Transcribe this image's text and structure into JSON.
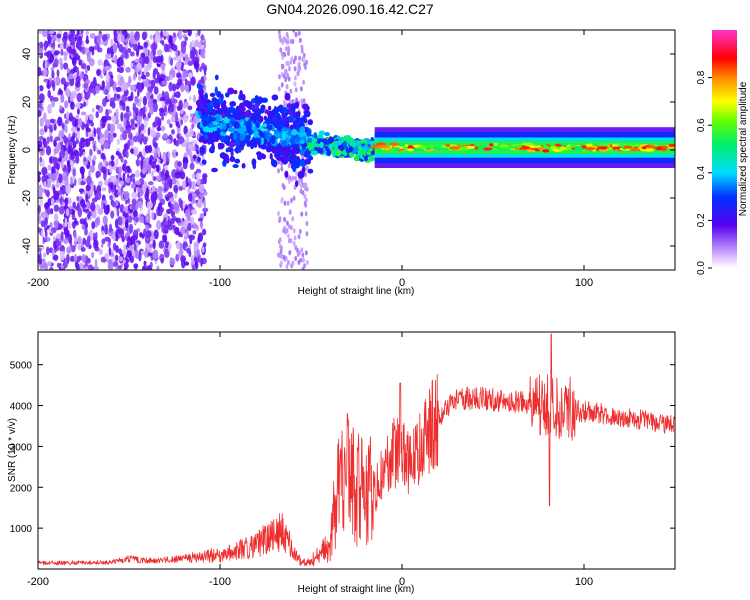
{
  "title": "GN04.2026.090.16.42.C27",
  "colors": {
    "signal": "#ee2e2e",
    "frame": "#000000",
    "background": "#ffffff"
  },
  "chart_data": [
    {
      "type": "heatmap",
      "name": "spectrogram",
      "xlabel": "Height of straight line (km)",
      "ylabel": "Frequency (Hz)",
      "xlim": [
        -200,
        150
      ],
      "ylim": [
        -50,
        50
      ],
      "xticks": [
        -200,
        -100,
        0,
        100
      ],
      "yticks": [
        -40,
        -20,
        0,
        20,
        40
      ],
      "colorbar": {
        "label": "Normalized spectral amplitude",
        "range": [
          0,
          1
        ],
        "ticks": [
          0.0,
          0.2,
          0.4,
          0.6,
          0.8
        ],
        "colormap": "rainbow (purple-blue-cyan-green-yellow-red-magenta)"
      },
      "regions": [
        {
          "x": [
            -200,
            -110
          ],
          "freq_spread": "full band -50 to 50",
          "amplitude": "0.0-0.2 (noise)"
        },
        {
          "x": [
            -110,
            -50
          ],
          "freq_center": 10,
          "amplitude": "0.1-0.4"
        },
        {
          "x": [
            -50,
            -15
          ],
          "freq_center": 0,
          "amplitude": "0.3-0.6"
        },
        {
          "x": [
            -15,
            150
          ],
          "freq_center": 1,
          "amplitude": "0.4-1.0 (peaks red)"
        }
      ]
    },
    {
      "type": "line",
      "name": "snr",
      "xlabel": "Height of straight line (km)",
      "ylabel": "SNR (10 * v/v)",
      "xlim": [
        -200,
        150
      ],
      "ylim": [
        0,
        5800
      ],
      "xticks": [
        -200,
        -100,
        0,
        100
      ],
      "yticks": [
        1000,
        2000,
        3000,
        4000,
        5000
      ],
      "series": [
        {
          "name": "SNR",
          "x": [
            -200,
            -180,
            -160,
            -150,
            -140,
            -120,
            -100,
            -90,
            -80,
            -70,
            -65,
            -60,
            -55,
            -50,
            -45,
            -40,
            -35,
            -30,
            -25,
            -20,
            -15,
            -10,
            -5,
            0,
            5,
            10,
            20,
            30,
            40,
            50,
            60,
            70,
            80,
            85,
            90,
            100,
            110,
            120,
            130,
            140,
            150
          ],
          "y": [
            150,
            150,
            160,
            250,
            200,
            250,
            350,
            450,
            600,
            850,
            1000,
            400,
            150,
            200,
            350,
            600,
            2000,
            2500,
            2200,
            1700,
            2000,
            2400,
            2800,
            2800,
            2600,
            3100,
            3700,
            4150,
            4200,
            4150,
            4100,
            4050,
            4000,
            3900,
            3950,
            3850,
            3800,
            3700,
            3650,
            3600,
            3500
          ]
        }
      ],
      "features": [
        {
          "x": -30,
          "y": 3800,
          "label": "spike"
        },
        {
          "x": -1,
          "y": 4550,
          "label": "spike"
        },
        {
          "x": 82,
          "y": 5750,
          "label": "spike"
        },
        {
          "x": 81,
          "y": 1550,
          "label": "dip"
        }
      ]
    }
  ]
}
